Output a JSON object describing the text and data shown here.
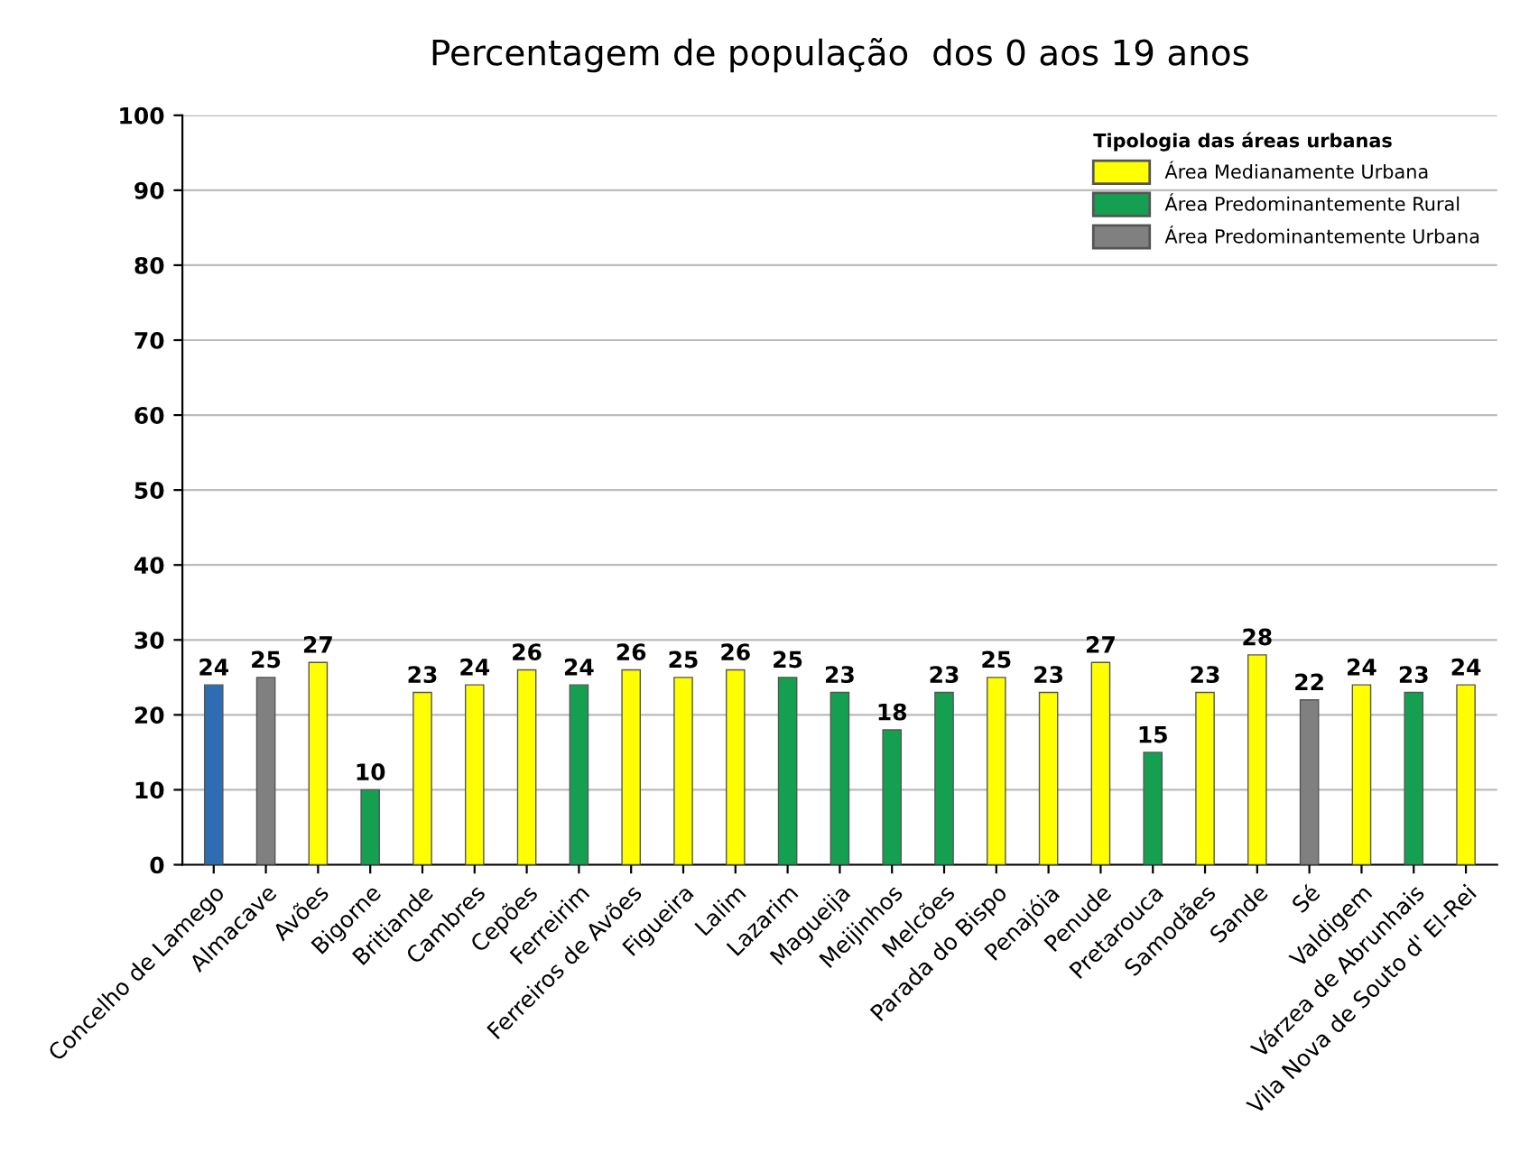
{
  "chart_data": {
    "type": "bar",
    "title": "Percentagem de população  dos 0 aos 19 anos",
    "categories": [
      "Concelho de Lamego",
      "Almacave",
      "Avões",
      "Bigorne",
      "Britiande",
      "Cambres",
      "Cepões",
      "Ferreirim",
      "Ferreiros de Avões",
      "Figueira",
      "Lalim",
      "Lazarim",
      "Magueija",
      "Meijinhos",
      "Melcões",
      "Parada do Bispo",
      "Penajóia",
      "Penude",
      "Pretarouca",
      "Samodães",
      "Sande",
      "Sé",
      "Valdigem",
      "Várzea de Abrunhais",
      "Vila Nova de Souto d' El-Rei"
    ],
    "series": [
      {
        "color": "#2e6db4",
        "values": [
          24,
          null,
          null,
          null,
          null,
          null,
          null,
          null,
          null,
          null,
          null,
          null,
          null,
          null,
          null,
          null,
          null,
          null,
          null,
          null,
          null,
          null,
          null,
          null,
          null
        ]
      },
      {
        "name": "Área Medianamente Urbana",
        "color": "#ffff00",
        "values": [
          null,
          null,
          27,
          null,
          23,
          24,
          26,
          null,
          26,
          25,
          26,
          null,
          null,
          null,
          null,
          25,
          23,
          27,
          null,
          23,
          28,
          null,
          24,
          null,
          24
        ]
      },
      {
        "name": "Área Predominantemente Rural",
        "color": "#14a050",
        "values": [
          null,
          null,
          null,
          10,
          null,
          null,
          null,
          24,
          null,
          null,
          null,
          25,
          23,
          18,
          23,
          null,
          null,
          null,
          15,
          null,
          null,
          null,
          null,
          23,
          null
        ]
      },
      {
        "name": "Área Predominantemente Urbana",
        "color": "#808080",
        "values": [
          null,
          25,
          null,
          null,
          null,
          null,
          null,
          null,
          null,
          null,
          null,
          null,
          null,
          null,
          null,
          null,
          null,
          null,
          null,
          null,
          null,
          22,
          null,
          null,
          null
        ]
      }
    ],
    "legend_title": "Tipologia das áreas urbanas",
    "legend": "top right",
    "ylim": [
      0,
      100
    ],
    "yticks": [
      0,
      10,
      20,
      30,
      40,
      50,
      60,
      70,
      80,
      90,
      100
    ],
    "grid": "y",
    "data_labels": true
  }
}
